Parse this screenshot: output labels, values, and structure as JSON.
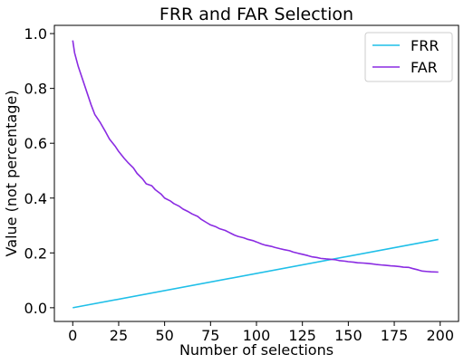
{
  "chart_data": {
    "type": "line",
    "title": "FRR and FAR Selection",
    "xlabel": "Number of selections",
    "ylabel": "Value (not percentage)",
    "xlim": [
      -10,
      210
    ],
    "ylim": [
      -0.05,
      1.03
    ],
    "xticks": [
      0,
      25,
      50,
      75,
      100,
      125,
      150,
      175,
      200
    ],
    "xtick_labels": [
      "0",
      "25",
      "50",
      "75",
      "100",
      "125",
      "150",
      "175",
      "200"
    ],
    "yticks": [
      0.0,
      0.2,
      0.4,
      0.6,
      0.8,
      1.0
    ],
    "ytick_labels": [
      "0.0",
      "0.2",
      "0.4",
      "0.6",
      "0.8",
      "1.0"
    ],
    "grid": false,
    "legend_position": "top-right",
    "series": [
      {
        "name": "FRR",
        "color": "#1fbfe8",
        "x": [
          0,
          199
        ],
        "y": [
          0.0,
          0.249
        ]
      },
      {
        "name": "FAR",
        "color": "#8a2be2",
        "x": [
          0,
          1,
          3,
          5,
          8,
          10,
          12,
          15,
          18,
          20,
          23,
          25,
          28,
          30,
          33,
          35,
          38,
          40,
          43,
          45,
          48,
          50,
          53,
          55,
          58,
          60,
          63,
          65,
          68,
          70,
          73,
          75,
          78,
          80,
          83,
          85,
          88,
          90,
          93,
          95,
          98,
          100,
          103,
          105,
          108,
          110,
          113,
          115,
          118,
          120,
          123,
          125,
          128,
          130,
          133,
          135,
          138,
          140,
          143,
          145,
          148,
          150,
          153,
          155,
          158,
          160,
          163,
          165,
          168,
          170,
          173,
          175,
          178,
          180,
          183,
          185,
          188,
          190,
          193,
          195,
          199
        ],
        "y": [
          0.975,
          0.93,
          0.88,
          0.84,
          0.78,
          0.74,
          0.705,
          0.675,
          0.64,
          0.615,
          0.59,
          0.57,
          0.545,
          0.53,
          0.51,
          0.49,
          0.47,
          0.452,
          0.445,
          0.43,
          0.415,
          0.4,
          0.39,
          0.38,
          0.37,
          0.36,
          0.35,
          0.342,
          0.333,
          0.322,
          0.31,
          0.302,
          0.295,
          0.288,
          0.282,
          0.275,
          0.265,
          0.26,
          0.255,
          0.25,
          0.245,
          0.24,
          0.232,
          0.228,
          0.224,
          0.22,
          0.215,
          0.212,
          0.208,
          0.203,
          0.198,
          0.195,
          0.19,
          0.186,
          0.183,
          0.18,
          0.178,
          0.177,
          0.175,
          0.172,
          0.17,
          0.168,
          0.166,
          0.164,
          0.163,
          0.162,
          0.16,
          0.158,
          0.156,
          0.155,
          0.153,
          0.152,
          0.15,
          0.148,
          0.147,
          0.143,
          0.138,
          0.134,
          0.132,
          0.131,
          0.13
        ]
      }
    ]
  }
}
